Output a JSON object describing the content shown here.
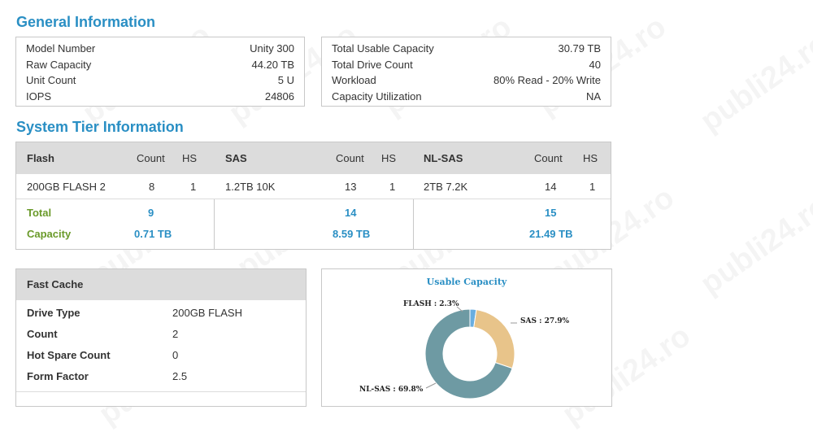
{
  "general": {
    "title": "General Information",
    "left": [
      {
        "label": "Model Number",
        "value": "Unity 300"
      },
      {
        "label": "Raw Capacity",
        "value": "44.20 TB"
      },
      {
        "label": "Unit Count",
        "value": "5 U"
      },
      {
        "label": "IOPS",
        "value": "24806"
      }
    ],
    "right": [
      {
        "label": "Total Usable Capacity",
        "value": "30.79 TB"
      },
      {
        "label": "Total Drive Count",
        "value": "40"
      },
      {
        "label": "Workload",
        "value": "80% Read - 20% Write"
      },
      {
        "label": "Capacity Utilization",
        "value": "NA"
      }
    ]
  },
  "tier": {
    "title": "System Tier Information",
    "count_label": "Count",
    "hs_label": "HS",
    "total_label": "Total",
    "capacity_label": "Capacity",
    "groups": [
      {
        "name": "Flash",
        "drive": "200GB FLASH 2",
        "count": "8",
        "hs": "1",
        "total": "9",
        "capacity": "0.71 TB"
      },
      {
        "name": "SAS",
        "drive": "1.2TB 10K",
        "count": "13",
        "hs": "1",
        "total": "14",
        "capacity": "8.59 TB"
      },
      {
        "name": "NL-SAS",
        "drive": "2TB 7.2K",
        "count": "14",
        "hs": "1",
        "total": "15",
        "capacity": "21.49 TB"
      }
    ]
  },
  "fast_cache": {
    "title": "Fast Cache",
    "rows": [
      {
        "label": "Drive Type",
        "value": "200GB FLASH"
      },
      {
        "label": "Count",
        "value": "2"
      },
      {
        "label": "Hot Spare Count",
        "value": "0"
      },
      {
        "label": "Form Factor",
        "value": "2.5"
      }
    ]
  },
  "watermark_text": "publi24.ro",
  "chart_data": {
    "type": "pie",
    "title": "Usable Capacity",
    "categories": [
      "FLASH",
      "SAS",
      "NL-SAS"
    ],
    "values": [
      2.3,
      27.9,
      69.8
    ],
    "labels": [
      "FLASH : 2.3%",
      "SAS : 27.9%",
      "NL-SAS : 69.8%"
    ],
    "colors": [
      "#6aaee0",
      "#e8c48a",
      "#6e9aa3"
    ],
    "donut": true
  }
}
